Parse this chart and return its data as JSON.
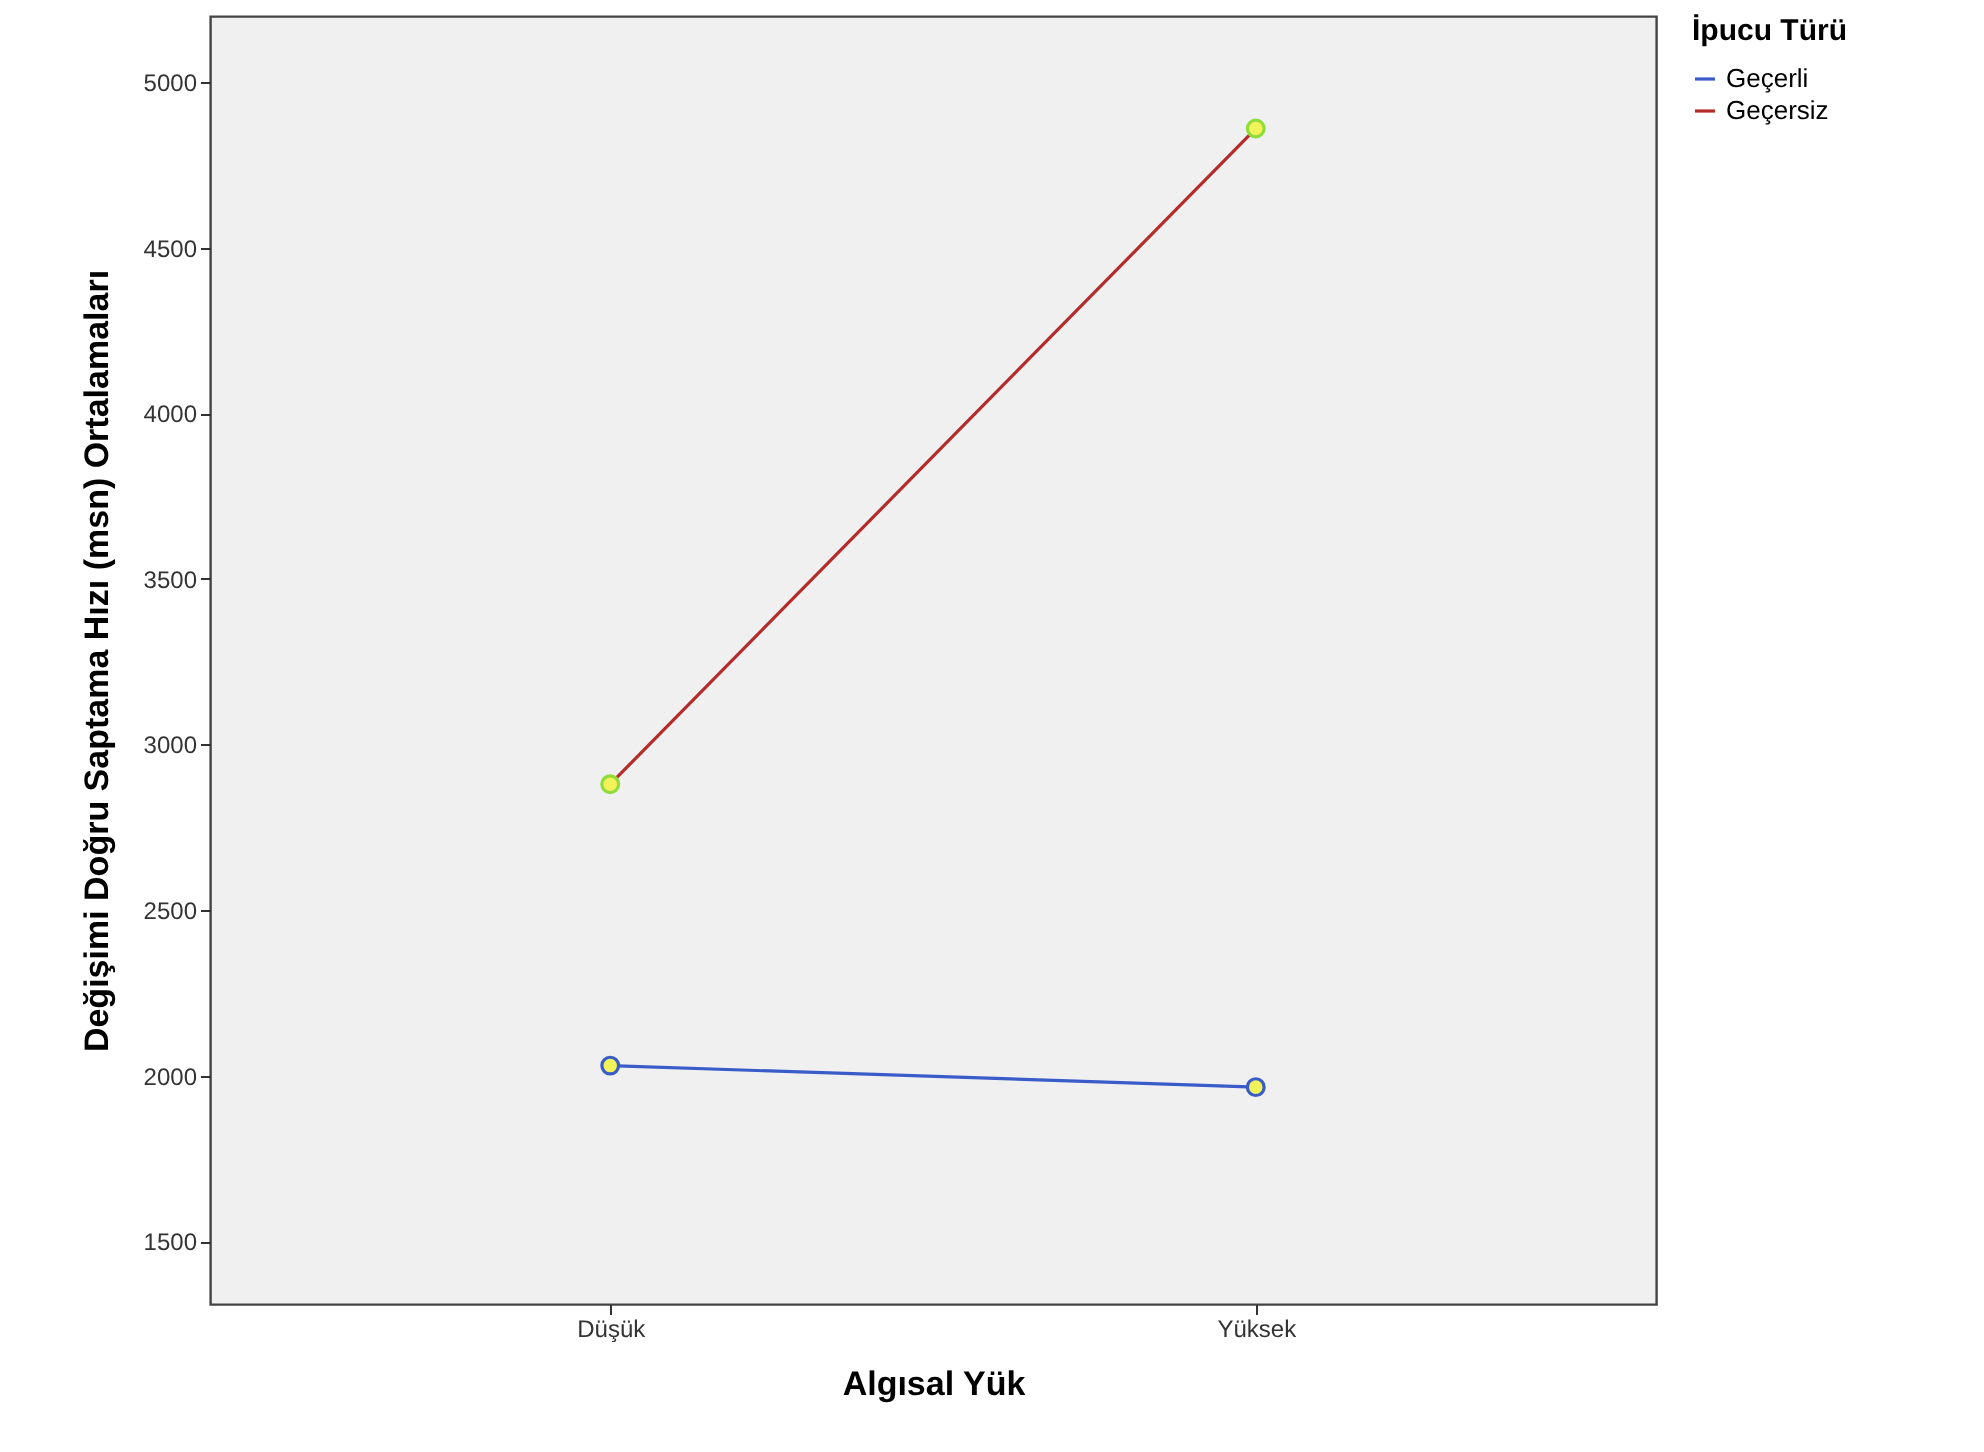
{
  "chart_data": {
    "type": "line",
    "xlabel": "Algısal Yük",
    "ylabel": "Değişimi Doğru Saptama Hızı (msn) Ortalamaları",
    "legend_title": "İpucu Türü",
    "categories": [
      "Düşük",
      "Yüksek"
    ],
    "series": [
      {
        "name": "Geçerli",
        "color": "#3a5cc8",
        "values": [
          2030,
          1965
        ]
      },
      {
        "name": "Geçersiz",
        "color": "#b32b2b",
        "values": [
          2880,
          4860
        ]
      }
    ],
    "ylim": [
      1310,
      5200
    ],
    "yticks": [
      1500,
      2000,
      2500,
      3000,
      3500,
      4000,
      4500,
      5000
    ],
    "grid": false,
    "legend": "top right",
    "marker": "circle",
    "line_style": "solid"
  }
}
